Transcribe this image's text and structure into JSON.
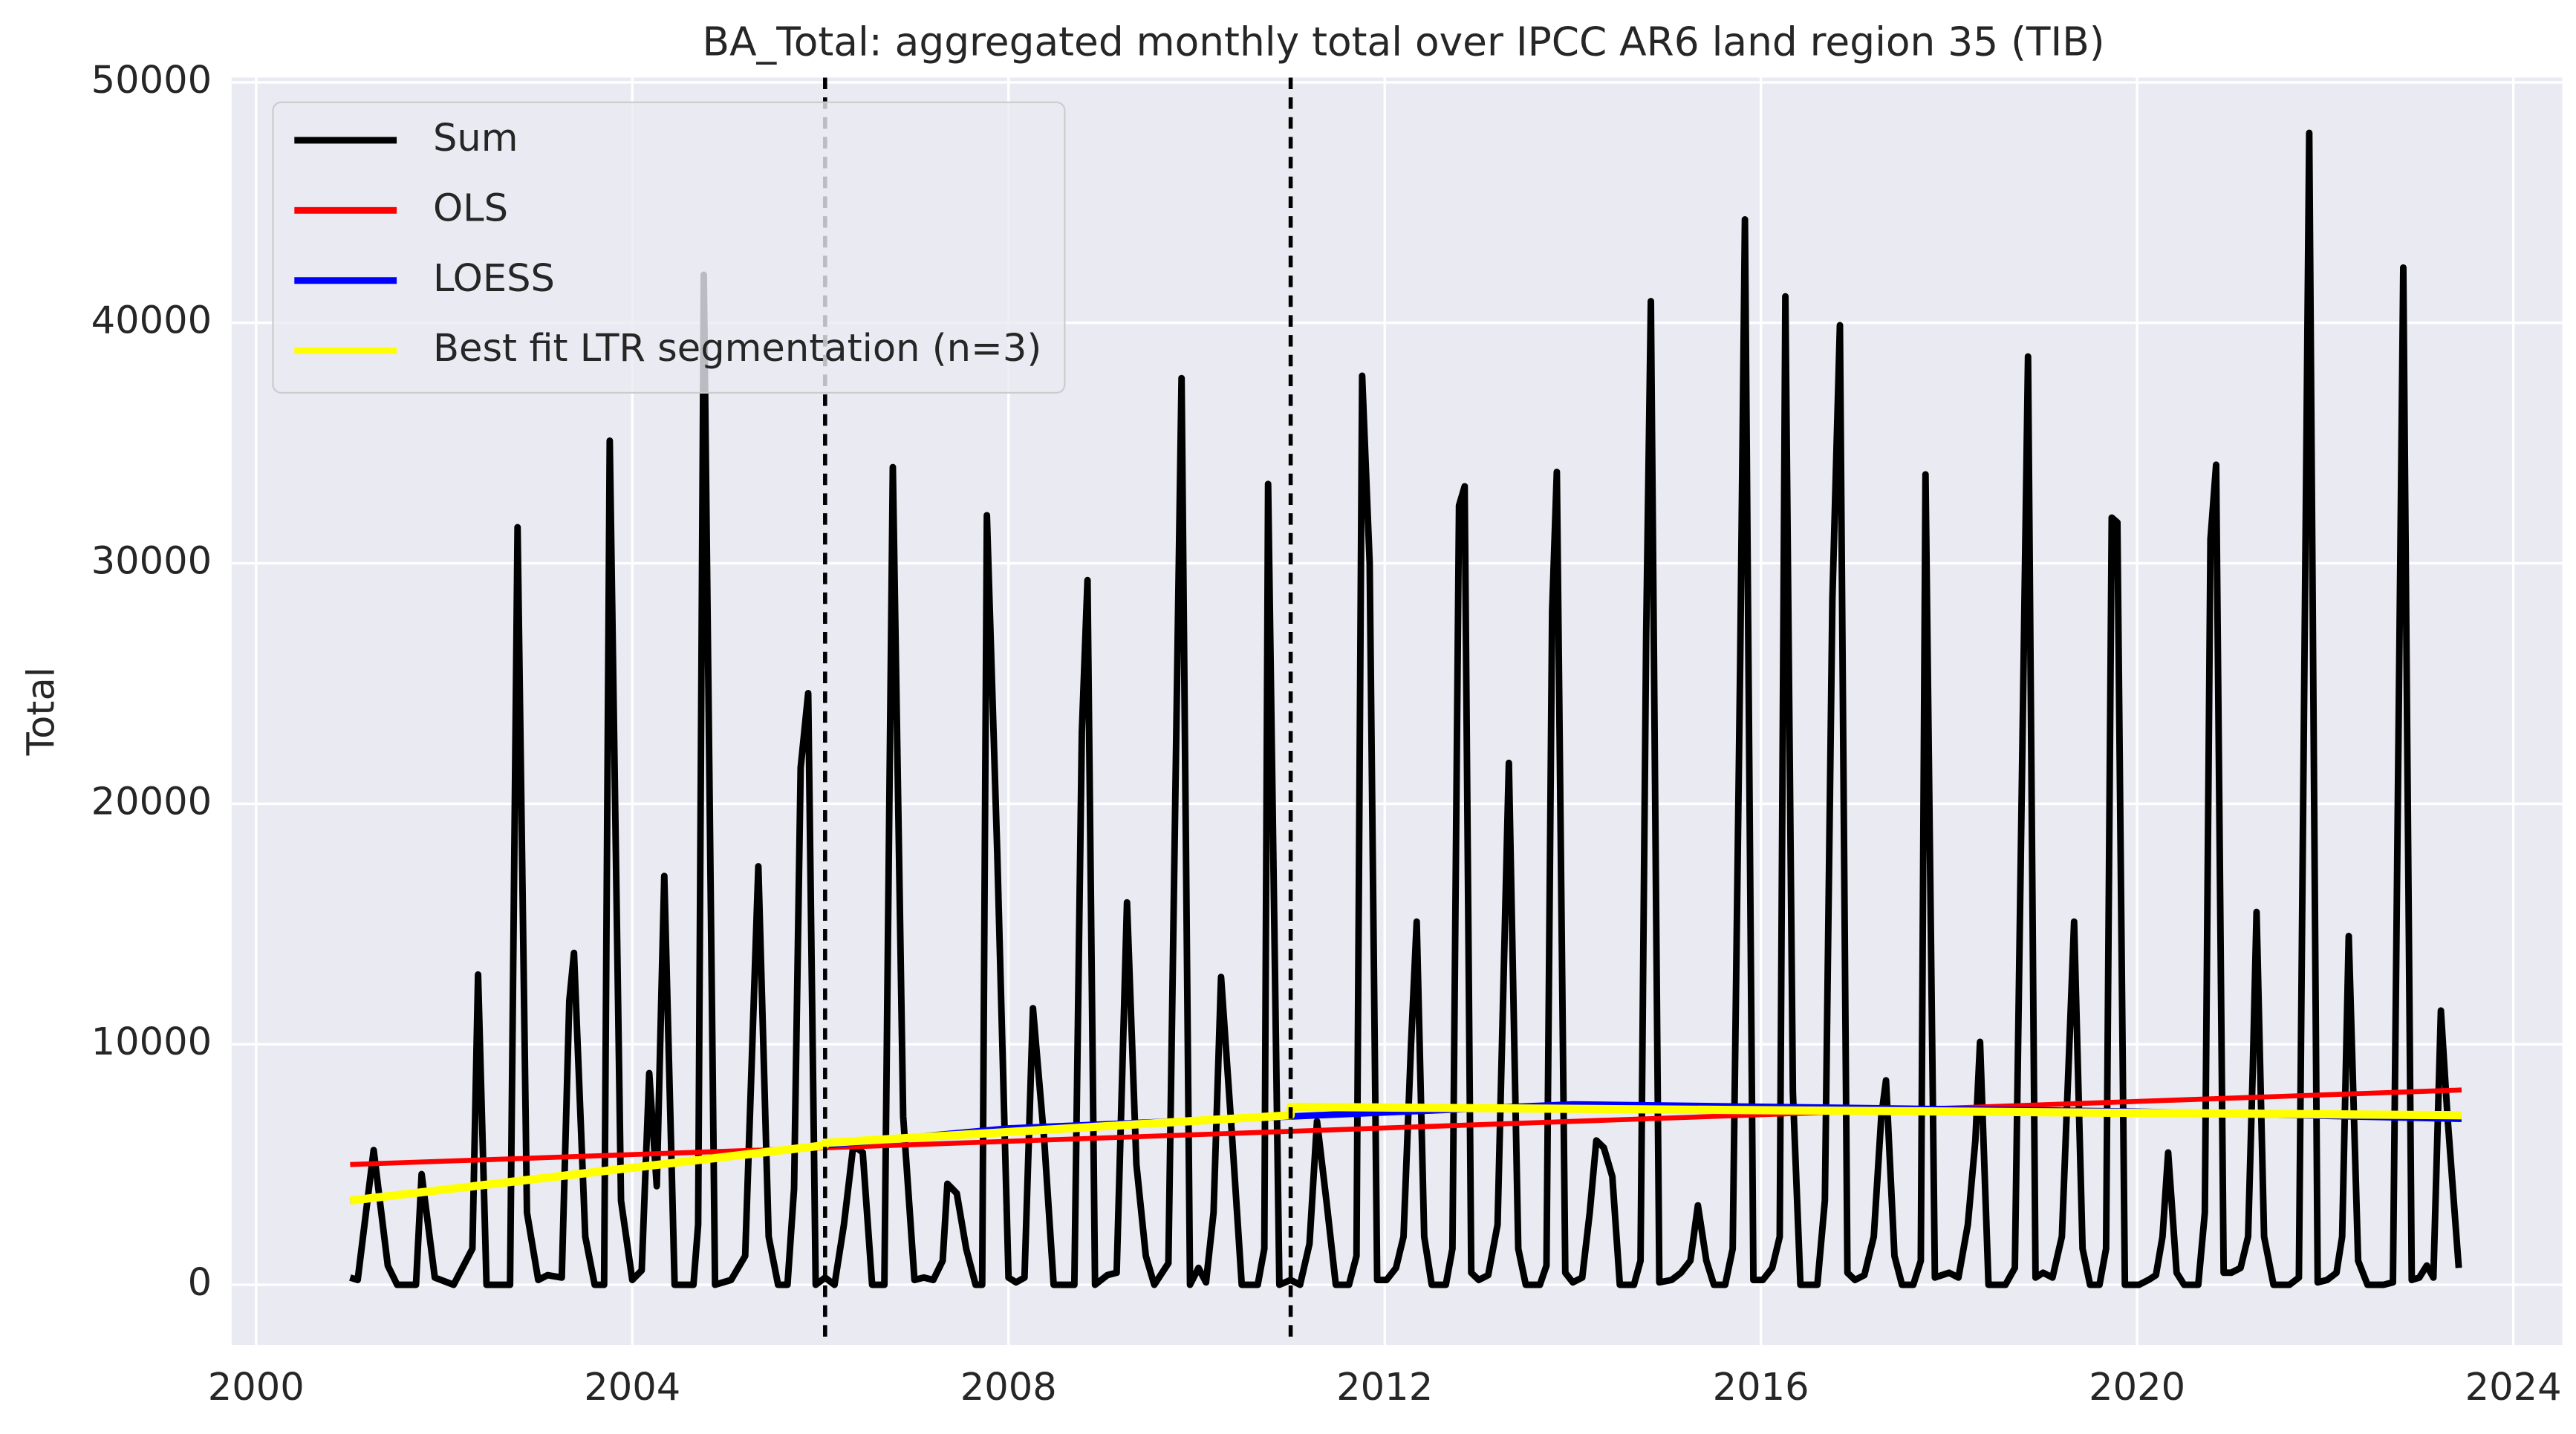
{
  "chart_data": {
    "type": "line",
    "title": "BA_Total: aggregated monthly total over IPCC AR6 land region 35 (TIB)",
    "y_label": "Total",
    "xlim": [
      1999.74,
      2024.52
    ],
    "xticks": [
      2000,
      2004,
      2008,
      2012,
      2016,
      2020,
      2024
    ],
    "ylim": [
      -2500,
      50200
    ],
    "yticks": [
      0,
      10000,
      20000,
      30000,
      40000,
      50000
    ],
    "grid": true,
    "legend": "upper left",
    "vlines": [
      2006.05,
      2011.0
    ],
    "series": [
      {
        "name": "Sum",
        "color": "#000000",
        "x": [
          2001.0,
          2001.08,
          2001.25,
          2001.4,
          2001.5,
          2001.7,
          2001.76,
          2001.9,
          2002.1,
          2002.3,
          2002.36,
          2002.45,
          2002.7,
          2002.78,
          2002.88,
          2003.0,
          2003.1,
          2003.25,
          2003.33,
          2003.38,
          2003.5,
          2003.6,
          2003.7,
          2003.76,
          2003.88,
          2004.0,
          2004.1,
          2004.18,
          2004.26,
          2004.34,
          2004.45,
          2004.65,
          2004.7,
          2004.76,
          2004.88,
          2005.05,
          2005.2,
          2005.34,
          2005.45,
          2005.55,
          2005.65,
          2005.72,
          2005.79,
          2005.87,
          2005.95,
          2006.05,
          2006.15,
          2006.25,
          2006.35,
          2006.45,
          2006.55,
          2006.68,
          2006.77,
          2006.88,
          2007.0,
          2007.1,
          2007.2,
          2007.3,
          2007.35,
          2007.45,
          2007.55,
          2007.65,
          2007.72,
          2007.77,
          2007.88,
          2008.0,
          2008.08,
          2008.17,
          2008.26,
          2008.38,
          2008.48,
          2008.7,
          2008.78,
          2008.84,
          2008.92,
          2009.05,
          2009.15,
          2009.26,
          2009.36,
          2009.46,
          2009.55,
          2009.7,
          2009.84,
          2009.93,
          2010.02,
          2010.1,
          2010.18,
          2010.26,
          2010.38,
          2010.48,
          2010.65,
          2010.72,
          2010.76,
          2010.88,
          2011.0,
          2011.1,
          2011.2,
          2011.28,
          2011.38,
          2011.48,
          2011.62,
          2011.7,
          2011.76,
          2011.84,
          2011.92,
          2012.02,
          2012.12,
          2012.2,
          2012.28,
          2012.34,
          2012.42,
          2012.5,
          2012.65,
          2012.72,
          2012.79,
          2012.85,
          2012.92,
          2013.0,
          2013.1,
          2013.2,
          2013.32,
          2013.42,
          2013.5,
          2013.65,
          2013.72,
          2013.78,
          2013.83,
          2013.92,
          2014.0,
          2014.1,
          2014.18,
          2014.25,
          2014.33,
          2014.42,
          2014.5,
          2014.65,
          2014.72,
          2014.78,
          2014.83,
          2014.92,
          2015.05,
          2015.15,
          2015.25,
          2015.33,
          2015.42,
          2015.5,
          2015.62,
          2015.7,
          2015.78,
          2015.83,
          2015.92,
          2016.02,
          2016.12,
          2016.2,
          2016.26,
          2016.34,
          2016.42,
          2016.6,
          2016.68,
          2016.76,
          2016.84,
          2016.92,
          2017.0,
          2017.1,
          2017.2,
          2017.28,
          2017.33,
          2017.42,
          2017.5,
          2017.62,
          2017.7,
          2017.75,
          2017.85,
          2018.0,
          2018.1,
          2018.2,
          2018.28,
          2018.33,
          2018.42,
          2018.6,
          2018.7,
          2018.84,
          2018.92,
          2019.0,
          2019.1,
          2019.2,
          2019.27,
          2019.33,
          2019.42,
          2019.5,
          2019.6,
          2019.67,
          2019.73,
          2019.79,
          2019.87,
          2020.02,
          2020.12,
          2020.2,
          2020.27,
          2020.33,
          2020.42,
          2020.5,
          2020.65,
          2020.72,
          2020.78,
          2020.84,
          2020.92,
          2021.0,
          2021.1,
          2021.18,
          2021.23,
          2021.27,
          2021.35,
          2021.45,
          2021.62,
          2021.72,
          2021.83,
          2021.92,
          2022.02,
          2022.12,
          2022.18,
          2022.25,
          2022.35,
          2022.45,
          2022.62,
          2022.72,
          2022.83,
          2022.92,
          2023.0,
          2023.08,
          2023.15,
          2023.23,
          2023.3,
          2023.42
        ],
        "values": [
          300,
          200,
          5600,
          800,
          0,
          0,
          4600,
          300,
          0,
          1500,
          12900,
          0,
          0,
          31500,
          3000,
          200,
          400,
          300,
          11800,
          13800,
          2000,
          0,
          0,
          35100,
          3500,
          200,
          600,
          8800,
          4100,
          17000,
          0,
          0,
          2500,
          42000,
          0,
          200,
          1200,
          17400,
          2000,
          0,
          0,
          4000,
          21500,
          24600,
          0,
          300,
          0,
          2500,
          5800,
          5500,
          0,
          0,
          34000,
          7000,
          200,
          300,
          200,
          1000,
          4200,
          3800,
          1500,
          0,
          0,
          32000,
          18000,
          300,
          100,
          300,
          11500,
          6000,
          0,
          0,
          23000,
          29300,
          0,
          400,
          500,
          15900,
          5000,
          1200,
          0,
          900,
          37700,
          0,
          700,
          100,
          3000,
          12800,
          6000,
          0,
          0,
          1500,
          33300,
          0,
          200,
          0,
          1700,
          6800,
          3500,
          0,
          0,
          1200,
          37800,
          30000,
          200,
          200,
          700,
          2000,
          10000,
          15100,
          2000,
          0,
          0,
          1500,
          32400,
          33200,
          500,
          200,
          400,
          2500,
          21700,
          1500,
          0,
          0,
          800,
          28000,
          33800,
          500,
          100,
          300,
          3000,
          6000,
          5700,
          4500,
          0,
          0,
          1000,
          27000,
          40900,
          100,
          200,
          500,
          1000,
          3300,
          1000,
          0,
          0,
          1500,
          26000,
          44300,
          200,
          200,
          700,
          2000,
          41100,
          8000,
          0,
          0,
          3500,
          28500,
          39900,
          500,
          200,
          400,
          2000,
          7000,
          8500,
          1200,
          0,
          0,
          1000,
          33700,
          300,
          500,
          300,
          2500,
          6000,
          10100,
          0,
          0,
          700,
          38600,
          300,
          500,
          300,
          2000,
          9000,
          15100,
          1500,
          0,
          0,
          1500,
          31900,
          31700,
          0,
          0,
          200,
          400,
          2000,
          5500,
          500,
          0,
          0,
          3000,
          31000,
          34100,
          500,
          500,
          700,
          2000,
          9000,
          15500,
          2000,
          0,
          0,
          300,
          47900,
          100,
          200,
          500,
          2000,
          14500,
          1000,
          0,
          0,
          100,
          42300,
          200,
          300,
          800,
          300,
          11400,
          7000,
          700
        ]
      },
      {
        "name": "OLS",
        "color": "#ff0000",
        "x": [
          2001.0,
          2023.45
        ],
        "values": [
          5000,
          8100
        ]
      },
      {
        "name": "LOESS",
        "color": "#0000ff",
        "x": [
          2001.0,
          2006.05,
          2008.0,
          2011.0,
          2014.0,
          2016.0,
          2018.0,
          2020.0,
          2023.45
        ],
        "values": [
          3500,
          5800,
          6500,
          7000,
          7500,
          7400,
          7300,
          7200,
          6900
        ]
      },
      {
        "name": "Best fit LTR segmentation (n=3)",
        "color": "#ffff00",
        "x": [
          2001.0,
          2006.05,
          2006.05,
          2011.0,
          2011.0,
          2023.45
        ],
        "values": [
          3500,
          5800,
          5900,
          7050,
          7400,
          7050
        ]
      }
    ]
  }
}
